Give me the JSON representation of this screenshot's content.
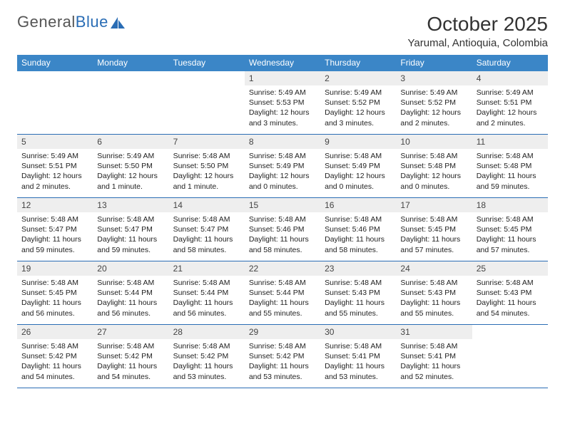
{
  "brand": {
    "part1": "General",
    "part2": "Blue"
  },
  "title": "October 2025",
  "location": "Yarumal, Antioquia, Colombia",
  "style": {
    "header_bg": "#3b86c7",
    "header_fg": "#ffffff",
    "row_border": "#2a6db5",
    "daynum_bg": "#eeeeee",
    "page_bg": "#ffffff",
    "logo_accent": "#2a6db5",
    "title_fontsize": 28,
    "body_fontsize": 10.5
  },
  "day_headers": [
    "Sunday",
    "Monday",
    "Tuesday",
    "Wednesday",
    "Thursday",
    "Friday",
    "Saturday"
  ],
  "weeks": [
    [
      {
        "n": "",
        "sr": "",
        "ss": "",
        "dl": ""
      },
      {
        "n": "",
        "sr": "",
        "ss": "",
        "dl": ""
      },
      {
        "n": "",
        "sr": "",
        "ss": "",
        "dl": ""
      },
      {
        "n": "1",
        "sr": "Sunrise: 5:49 AM",
        "ss": "Sunset: 5:53 PM",
        "dl": "Daylight: 12 hours and 3 minutes."
      },
      {
        "n": "2",
        "sr": "Sunrise: 5:49 AM",
        "ss": "Sunset: 5:52 PM",
        "dl": "Daylight: 12 hours and 3 minutes."
      },
      {
        "n": "3",
        "sr": "Sunrise: 5:49 AM",
        "ss": "Sunset: 5:52 PM",
        "dl": "Daylight: 12 hours and 2 minutes."
      },
      {
        "n": "4",
        "sr": "Sunrise: 5:49 AM",
        "ss": "Sunset: 5:51 PM",
        "dl": "Daylight: 12 hours and 2 minutes."
      }
    ],
    [
      {
        "n": "5",
        "sr": "Sunrise: 5:49 AM",
        "ss": "Sunset: 5:51 PM",
        "dl": "Daylight: 12 hours and 2 minutes."
      },
      {
        "n": "6",
        "sr": "Sunrise: 5:49 AM",
        "ss": "Sunset: 5:50 PM",
        "dl": "Daylight: 12 hours and 1 minute."
      },
      {
        "n": "7",
        "sr": "Sunrise: 5:48 AM",
        "ss": "Sunset: 5:50 PM",
        "dl": "Daylight: 12 hours and 1 minute."
      },
      {
        "n": "8",
        "sr": "Sunrise: 5:48 AM",
        "ss": "Sunset: 5:49 PM",
        "dl": "Daylight: 12 hours and 0 minutes."
      },
      {
        "n": "9",
        "sr": "Sunrise: 5:48 AM",
        "ss": "Sunset: 5:49 PM",
        "dl": "Daylight: 12 hours and 0 minutes."
      },
      {
        "n": "10",
        "sr": "Sunrise: 5:48 AM",
        "ss": "Sunset: 5:48 PM",
        "dl": "Daylight: 12 hours and 0 minutes."
      },
      {
        "n": "11",
        "sr": "Sunrise: 5:48 AM",
        "ss": "Sunset: 5:48 PM",
        "dl": "Daylight: 11 hours and 59 minutes."
      }
    ],
    [
      {
        "n": "12",
        "sr": "Sunrise: 5:48 AM",
        "ss": "Sunset: 5:47 PM",
        "dl": "Daylight: 11 hours and 59 minutes."
      },
      {
        "n": "13",
        "sr": "Sunrise: 5:48 AM",
        "ss": "Sunset: 5:47 PM",
        "dl": "Daylight: 11 hours and 59 minutes."
      },
      {
        "n": "14",
        "sr": "Sunrise: 5:48 AM",
        "ss": "Sunset: 5:47 PM",
        "dl": "Daylight: 11 hours and 58 minutes."
      },
      {
        "n": "15",
        "sr": "Sunrise: 5:48 AM",
        "ss": "Sunset: 5:46 PM",
        "dl": "Daylight: 11 hours and 58 minutes."
      },
      {
        "n": "16",
        "sr": "Sunrise: 5:48 AM",
        "ss": "Sunset: 5:46 PM",
        "dl": "Daylight: 11 hours and 58 minutes."
      },
      {
        "n": "17",
        "sr": "Sunrise: 5:48 AM",
        "ss": "Sunset: 5:45 PM",
        "dl": "Daylight: 11 hours and 57 minutes."
      },
      {
        "n": "18",
        "sr": "Sunrise: 5:48 AM",
        "ss": "Sunset: 5:45 PM",
        "dl": "Daylight: 11 hours and 57 minutes."
      }
    ],
    [
      {
        "n": "19",
        "sr": "Sunrise: 5:48 AM",
        "ss": "Sunset: 5:45 PM",
        "dl": "Daylight: 11 hours and 56 minutes."
      },
      {
        "n": "20",
        "sr": "Sunrise: 5:48 AM",
        "ss": "Sunset: 5:44 PM",
        "dl": "Daylight: 11 hours and 56 minutes."
      },
      {
        "n": "21",
        "sr": "Sunrise: 5:48 AM",
        "ss": "Sunset: 5:44 PM",
        "dl": "Daylight: 11 hours and 56 minutes."
      },
      {
        "n": "22",
        "sr": "Sunrise: 5:48 AM",
        "ss": "Sunset: 5:44 PM",
        "dl": "Daylight: 11 hours and 55 minutes."
      },
      {
        "n": "23",
        "sr": "Sunrise: 5:48 AM",
        "ss": "Sunset: 5:43 PM",
        "dl": "Daylight: 11 hours and 55 minutes."
      },
      {
        "n": "24",
        "sr": "Sunrise: 5:48 AM",
        "ss": "Sunset: 5:43 PM",
        "dl": "Daylight: 11 hours and 55 minutes."
      },
      {
        "n": "25",
        "sr": "Sunrise: 5:48 AM",
        "ss": "Sunset: 5:43 PM",
        "dl": "Daylight: 11 hours and 54 minutes."
      }
    ],
    [
      {
        "n": "26",
        "sr": "Sunrise: 5:48 AM",
        "ss": "Sunset: 5:42 PM",
        "dl": "Daylight: 11 hours and 54 minutes."
      },
      {
        "n": "27",
        "sr": "Sunrise: 5:48 AM",
        "ss": "Sunset: 5:42 PM",
        "dl": "Daylight: 11 hours and 54 minutes."
      },
      {
        "n": "28",
        "sr": "Sunrise: 5:48 AM",
        "ss": "Sunset: 5:42 PM",
        "dl": "Daylight: 11 hours and 53 minutes."
      },
      {
        "n": "29",
        "sr": "Sunrise: 5:48 AM",
        "ss": "Sunset: 5:42 PM",
        "dl": "Daylight: 11 hours and 53 minutes."
      },
      {
        "n": "30",
        "sr": "Sunrise: 5:48 AM",
        "ss": "Sunset: 5:41 PM",
        "dl": "Daylight: 11 hours and 53 minutes."
      },
      {
        "n": "31",
        "sr": "Sunrise: 5:48 AM",
        "ss": "Sunset: 5:41 PM",
        "dl": "Daylight: 11 hours and 52 minutes."
      },
      {
        "n": "",
        "sr": "",
        "ss": "",
        "dl": ""
      }
    ]
  ]
}
